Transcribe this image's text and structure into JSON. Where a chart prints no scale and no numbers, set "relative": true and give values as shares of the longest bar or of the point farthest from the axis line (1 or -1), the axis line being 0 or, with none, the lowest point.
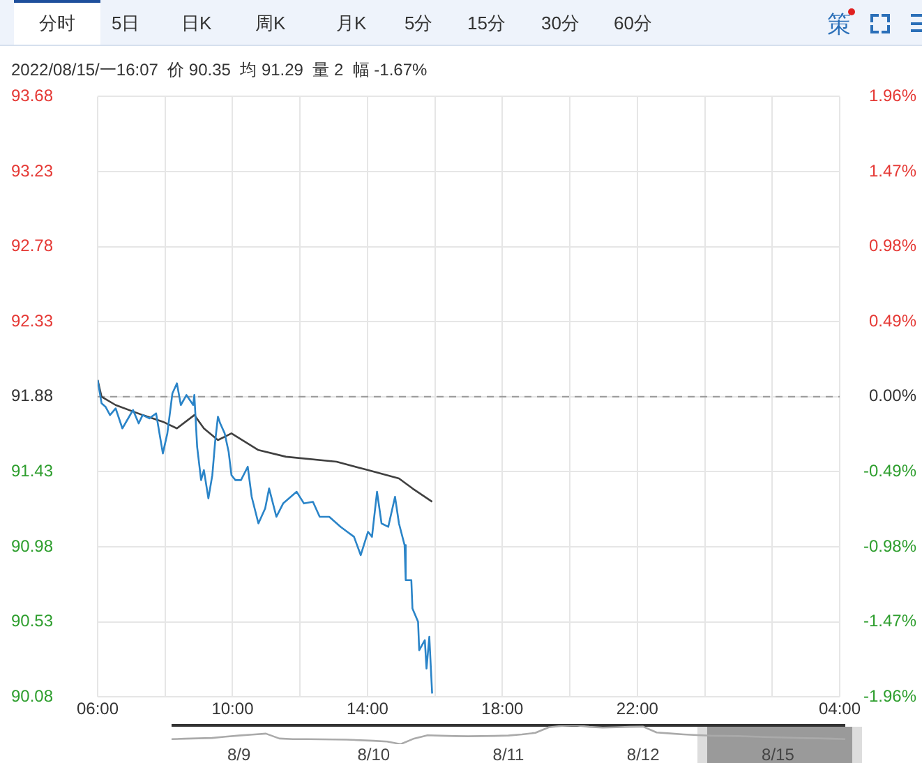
{
  "chart_data": [
    {
      "type": "line",
      "title": "2022/08/15/一16:07  价 90.35  均 91.29  量 2  幅 -1.67%",
      "annotations": [
        "分时",
        "5日",
        "日K",
        "周K",
        "月K",
        "5分",
        "15分",
        "30分",
        "60分",
        "策"
      ],
      "series": [
        {
          "color": "#2a84c8",
          "x": [
            "2022-08-15T06:00",
            "2022-08-15T06:07",
            "2022-08-15T06:14",
            "2022-08-15T06:22",
            "2022-08-15T06:32",
            "2022-08-15T06:44",
            "2022-08-15T06:56",
            "2022-08-15T07:03",
            "2022-08-15T07:13",
            "2022-08-15T07:20",
            "2022-08-15T07:32",
            "2022-08-15T07:44",
            "2022-08-15T07:52",
            "2022-08-15T07:56",
            "2022-08-15T08:04",
            "2022-08-15T08:13",
            "2022-08-15T08:21",
            "2022-08-15T08:28",
            "2022-08-15T08:38",
            "2022-08-15T08:50",
            "2022-08-15T08:52",
            "2022-08-15T08:57",
            "2022-08-15T09:04",
            "2022-08-15T09:09",
            "2022-08-15T09:17",
            "2022-08-15T09:24",
            "2022-08-15T09:29",
            "2022-08-15T09:34",
            "2022-08-15T09:38",
            "2022-08-15T09:46",
            "2022-08-15T09:53",
            "2022-08-15T09:58",
            "2022-08-15T10:05",
            "2022-08-15T10:15",
            "2022-08-15T10:27",
            "2022-08-15T10:34",
            "2022-08-15T10:46",
            "2022-08-15T10:58",
            "2022-08-15T11:05",
            "2022-08-15T11:18",
            "2022-08-15T11:30",
            "2022-08-15T11:54",
            "2022-08-15T12:07",
            "2022-08-15T12:23",
            "2022-08-15T12:35",
            "2022-08-15T12:52",
            "2022-08-15T13:12",
            "2022-08-15T13:24",
            "2022-08-15T13:36",
            "2022-08-15T13:48",
            "2022-08-15T14:01",
            "2022-08-15T14:08",
            "2022-08-15T14:17",
            "2022-08-15T14:25",
            "2022-08-15T14:37",
            "2022-08-15T14:49",
            "2022-08-15T14:56",
            "2022-08-15T15:06",
            "2022-08-15T15:08",
            "2022-08-15T15:18",
            "2022-08-15T15:20",
            "2022-08-15T15:30",
            "2022-08-15T15:32",
            "2022-08-15T15:42",
            "2022-08-15T15:45",
            "2022-08-15T15:50",
            "2022-08-15T15:55"
          ],
          "values": [
            91.98,
            91.84,
            91.82,
            91.77,
            91.81,
            91.69,
            91.76,
            91.8,
            91.72,
            91.77,
            91.75,
            91.78,
            91.62,
            91.54,
            91.66,
            91.9,
            91.96,
            91.83,
            91.89,
            91.83,
            91.89,
            91.58,
            91.38,
            91.44,
            91.27,
            91.41,
            91.61,
            91.76,
            91.72,
            91.66,
            91.55,
            91.41,
            91.38,
            91.38,
            91.46,
            91.28,
            91.12,
            91.21,
            91.33,
            91.16,
            91.24,
            91.31,
            91.24,
            91.25,
            91.16,
            91.16,
            91.1,
            91.07,
            91.04,
            90.93,
            91.07,
            91.04,
            91.31,
            91.12,
            91.1,
            91.28,
            91.12,
            90.99,
            90.78,
            90.78,
            90.61,
            90.53,
            90.36,
            90.42,
            90.25,
            90.44,
            90.1
          ]
        },
        {
          "color": "#404040",
          "x": [
            "2022-08-15T06:00",
            "2022-08-15T06:07",
            "2022-08-15T06:32",
            "2022-08-15T07:20",
            "2022-08-15T07:56",
            "2022-08-15T08:21",
            "2022-08-15T08:52",
            "2022-08-15T09:09",
            "2022-08-15T09:34",
            "2022-08-15T09:58",
            "2022-08-15T10:46",
            "2022-08-15T11:35",
            "2022-08-15T13:05",
            "2022-08-15T14:01",
            "2022-08-15T14:56",
            "2022-08-15T15:20",
            "2022-08-15T15:55"
          ],
          "values": [
            91.98,
            91.88,
            91.83,
            91.77,
            91.73,
            91.69,
            91.77,
            91.69,
            91.62,
            91.66,
            91.56,
            91.52,
            91.49,
            91.44,
            91.39,
            91.33,
            91.25
          ]
        }
      ],
      "xlim": [
        "2022-08-15T06:00",
        "2022-08-16T04:00"
      ],
      "xticks": [
        {
          "value": "2022-08-15T06:00",
          "label": "06:00"
        },
        {
          "value": "2022-08-15T08:00",
          "label": null
        },
        {
          "value": "2022-08-15T10:00",
          "label": "10:00"
        },
        {
          "value": "2022-08-15T12:00",
          "label": null
        },
        {
          "value": "2022-08-15T14:00",
          "label": "14:00"
        },
        {
          "value": "2022-08-15T16:00",
          "label": null
        },
        {
          "value": "2022-08-15T18:00",
          "label": "18:00"
        },
        {
          "value": "2022-08-15T20:00",
          "label": null
        },
        {
          "value": "2022-08-15T22:00",
          "label": "22:00"
        },
        {
          "value": "2022-08-16T00:00",
          "label": null
        },
        {
          "value": "2022-08-16T02:00",
          "label": null
        },
        {
          "value": "2022-08-16T04:00",
          "label": "04:00"
        }
      ],
      "ylim": [
        90.08,
        93.68
      ],
      "yticks": [
        90.08,
        90.53,
        90.98,
        91.43,
        91.88,
        92.33,
        92.78,
        93.23,
        93.68
      ],
      "y2lim": [
        -1.96,
        1.96
      ],
      "y2ticks": [
        {
          "value": -1.96,
          "label": "-1.96%"
        },
        {
          "value": -1.47,
          "label": "-1.47%"
        },
        {
          "value": -0.98,
          "label": "-0.98%"
        },
        {
          "value": -0.49,
          "label": "-0.49%"
        },
        {
          "value": 0,
          "label": "0.00%"
        },
        {
          "value": 0.49,
          "label": "0.49%"
        },
        {
          "value": 0.98,
          "label": "0.98%"
        },
        {
          "value": 1.47,
          "label": "1.47%"
        },
        {
          "value": 1.96,
          "label": "1.96%"
        }
      ],
      "ref_lines": [
        {
          "axis": "y",
          "value": 91.88,
          "color": "#999999",
          "line_style": "dashed"
        }
      ],
      "grid": true,
      "legend": false,
      "marker": "none",
      "line_style": "solid"
    },
    {
      "type": "line",
      "relative": true,
      "categories": [
        null,
        null,
        null,
        null,
        null,
        "8/9",
        null,
        null,
        null,
        null,
        null,
        null,
        null,
        null,
        null,
        "8/10",
        null,
        null,
        null,
        null,
        null,
        null,
        null,
        null,
        null,
        "8/11",
        null,
        null,
        null,
        null,
        null,
        null,
        null,
        null,
        null,
        "8/12",
        null,
        null,
        null,
        null,
        null,
        null,
        null,
        null,
        null,
        "8/15",
        null,
        null,
        null,
        null,
        null
      ],
      "series": [
        {
          "color": "#aaaaaa",
          "values": [
            0.27,
            0.29,
            0.31,
            0.33,
            0.4,
            0.46,
            0.51,
            0.56,
            0.3,
            0.27,
            0.27,
            0.26,
            0.25,
            0.24,
            0.21,
            0.18,
            0.14,
            0,
            0.3,
            0.47,
            0.45,
            0.43,
            0.42,
            0.43,
            0.44,
            0.46,
            0.52,
            0.6,
            0.9,
            0.97,
            1,
            0.92,
            0.88,
            0.9,
            0.92,
            0.93,
            0.62,
            0.57,
            0.52,
            0.48,
            0.45,
            0.44,
            0.43,
            0.41,
            0.38,
            0.36,
            0.34,
            0.32,
            0.31,
            0.29,
            0.27
          ]
        }
      ],
      "legend": false,
      "marker": "none",
      "line_style": "solid"
    }
  ]
}
